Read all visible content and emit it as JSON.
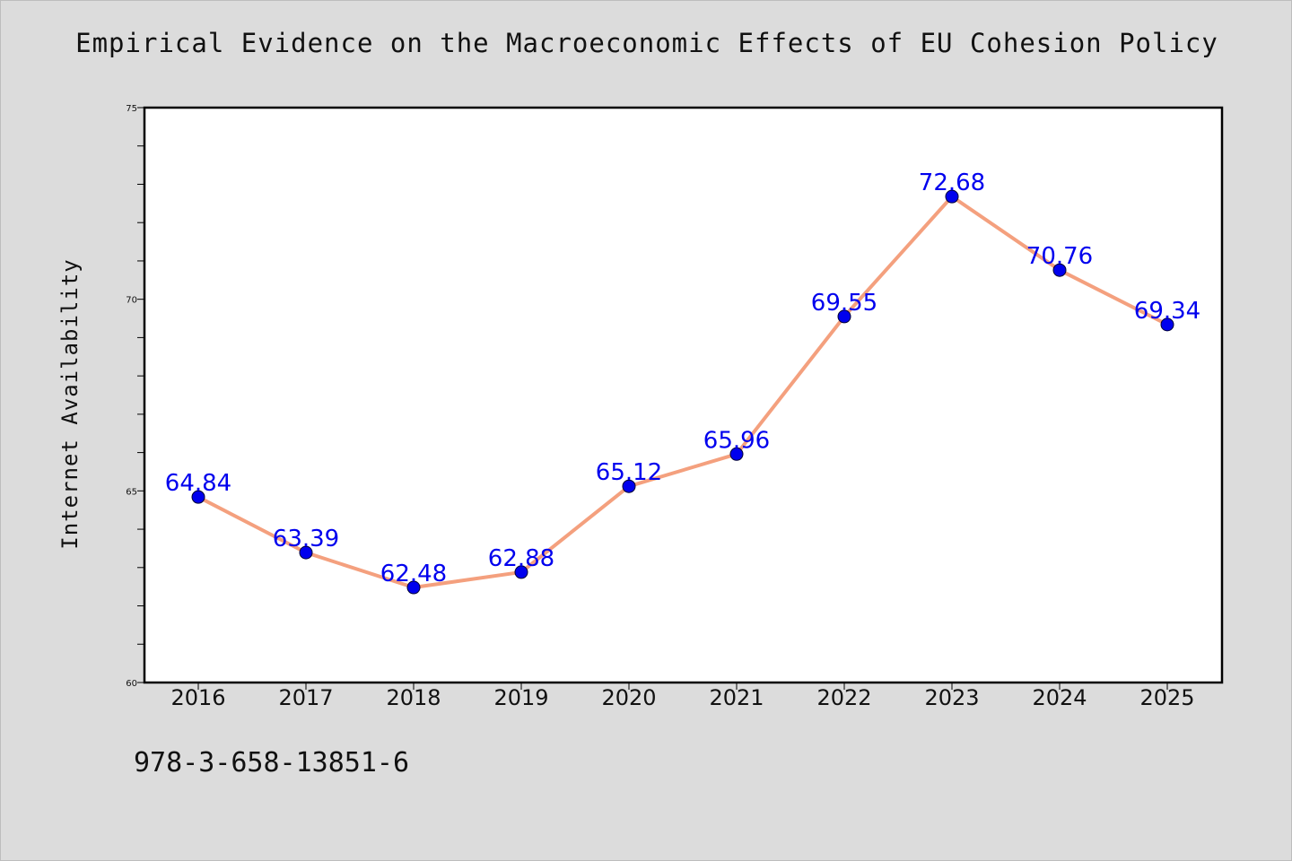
{
  "chart_data": {
    "type": "line",
    "title": "Empirical Evidence on the Macroeconomic Effects of EU Cohesion Policy",
    "xlabel": "",
    "ylabel": "Internet Availability",
    "categories": [
      "2016",
      "2017",
      "2018",
      "2019",
      "2020",
      "2021",
      "2022",
      "2023",
      "2024",
      "2025"
    ],
    "series": [
      {
        "values": [
          64.84,
          63.39,
          62.48,
          62.88,
          65.12,
          65.96,
          69.55,
          72.68,
          70.76,
          69.34
        ],
        "color": "#f4a07e",
        "marker_color": "#0000ee"
      }
    ],
    "data_labels": [
      "64.84",
      "63.39",
      "62.48",
      "62.88",
      "65.12",
      "65.96",
      "69.55",
      "72.68",
      "70.76",
      "69.34"
    ],
    "ylim": [
      60,
      75
    ],
    "yticks": [
      "60",
      "65",
      "70",
      "75"
    ],
    "grid": false,
    "legend": "none"
  },
  "footnote": "978-3-658-13851-6"
}
